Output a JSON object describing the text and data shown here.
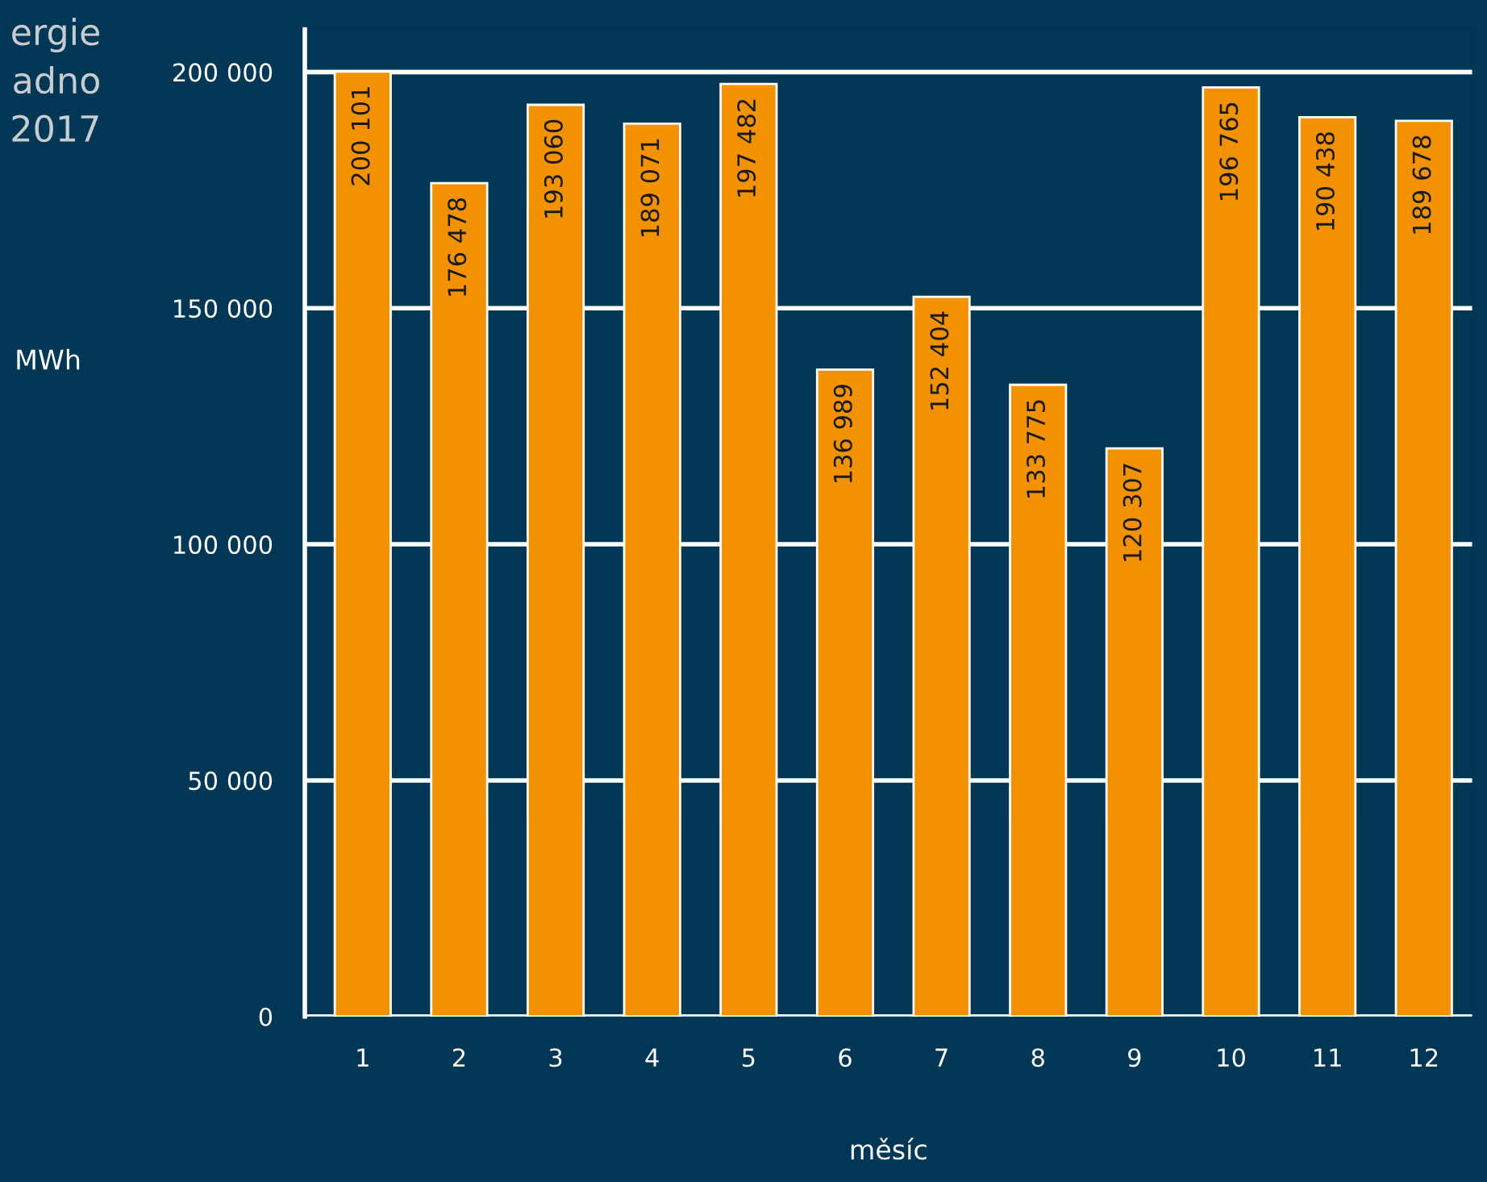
{
  "chart_data": {
    "type": "bar",
    "title": "ergie\nadno\n2017",
    "ylabel": "MWh",
    "xlabel": "měsíc",
    "categories": [
      "1",
      "2",
      "3",
      "4",
      "5",
      "6",
      "7",
      "8",
      "9",
      "10",
      "11",
      "12"
    ],
    "values": [
      200101,
      176478,
      193060,
      189071,
      197482,
      136989,
      152404,
      133775,
      120307,
      196765,
      190438,
      189678
    ],
    "value_labels": [
      "200 101",
      "176 478",
      "193 060",
      "189 071",
      "197 482",
      "136 989",
      "152 404",
      "133 775",
      "120 307",
      "196 765",
      "190 438",
      "189 678"
    ],
    "color": "#f39200",
    "ylim": [
      0,
      209000
    ],
    "yticks": [
      {
        "value": 0,
        "label": "0"
      },
      {
        "value": 50000,
        "label": "50 000"
      },
      {
        "value": 100000,
        "label": "100 000"
      },
      {
        "value": 150000,
        "label": "150 000"
      },
      {
        "value": 200000,
        "label": "200 000"
      }
    ],
    "grid": "y",
    "legend": false
  }
}
